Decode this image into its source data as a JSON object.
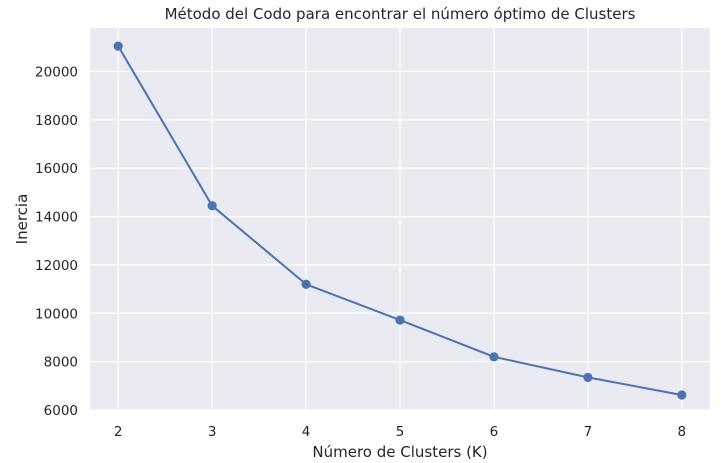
{
  "chart_data": {
    "type": "line",
    "title": "Método del Codo para encontrar el número óptimo de Clusters",
    "xlabel": "Número de Clusters (K)",
    "ylabel": "Inercia",
    "x": [
      2,
      3,
      4,
      5,
      6,
      7,
      8
    ],
    "series": [
      {
        "values": [
          21050,
          14450,
          11200,
          9720,
          8200,
          7350,
          6620
        ],
        "color": "#4c72b0",
        "marker": "circle"
      }
    ],
    "xticks": [
      "2",
      "3",
      "4",
      "5",
      "6",
      "7",
      "8"
    ],
    "yticks": [
      "6000",
      "8000",
      "10000",
      "12000",
      "14000",
      "16000",
      "18000",
      "20000"
    ],
    "xlim": [
      1.7,
      8.3
    ],
    "ylim": [
      6000,
      21800
    ],
    "grid": true,
    "background": "#eaeaf2",
    "grid_color": "#ffffff"
  }
}
